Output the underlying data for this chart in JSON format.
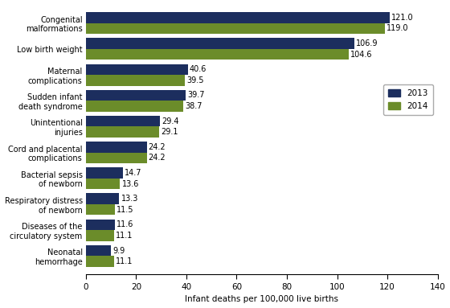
{
  "categories": [
    "Congenital\nmalformations",
    "Low birth weight",
    "Maternal\ncomplications",
    "Sudden infant\ndeath syndrome",
    "Unintentional\ninjuries",
    "Cord and placental\ncomplications",
    "Bacterial sepsis\nof newborn",
    "Respiratory distress\nof newborn",
    "Diseases of the\ncirculatory system",
    "Neonatal\nhemorrhage"
  ],
  "values_2013": [
    121.0,
    106.9,
    40.6,
    39.7,
    29.4,
    24.2,
    14.7,
    13.3,
    11.6,
    9.9
  ],
  "values_2014": [
    119.0,
    104.6,
    39.5,
    38.7,
    29.1,
    24.2,
    13.6,
    11.5,
    11.1,
    11.1
  ],
  "color_2013": "#1c2e5e",
  "color_2014": "#6b8c2a",
  "xlabel": "Infant deaths per 100,000 live births",
  "xlim": [
    0,
    140
  ],
  "xticks": [
    0,
    20,
    40,
    60,
    80,
    100,
    120,
    140
  ],
  "legend_labels": [
    "2013",
    "2014"
  ],
  "bar_height": 0.42,
  "label_fontsize": 7.0,
  "ytick_fontsize": 7.0,
  "axis_fontsize": 7.5,
  "background_color": "#ffffff"
}
